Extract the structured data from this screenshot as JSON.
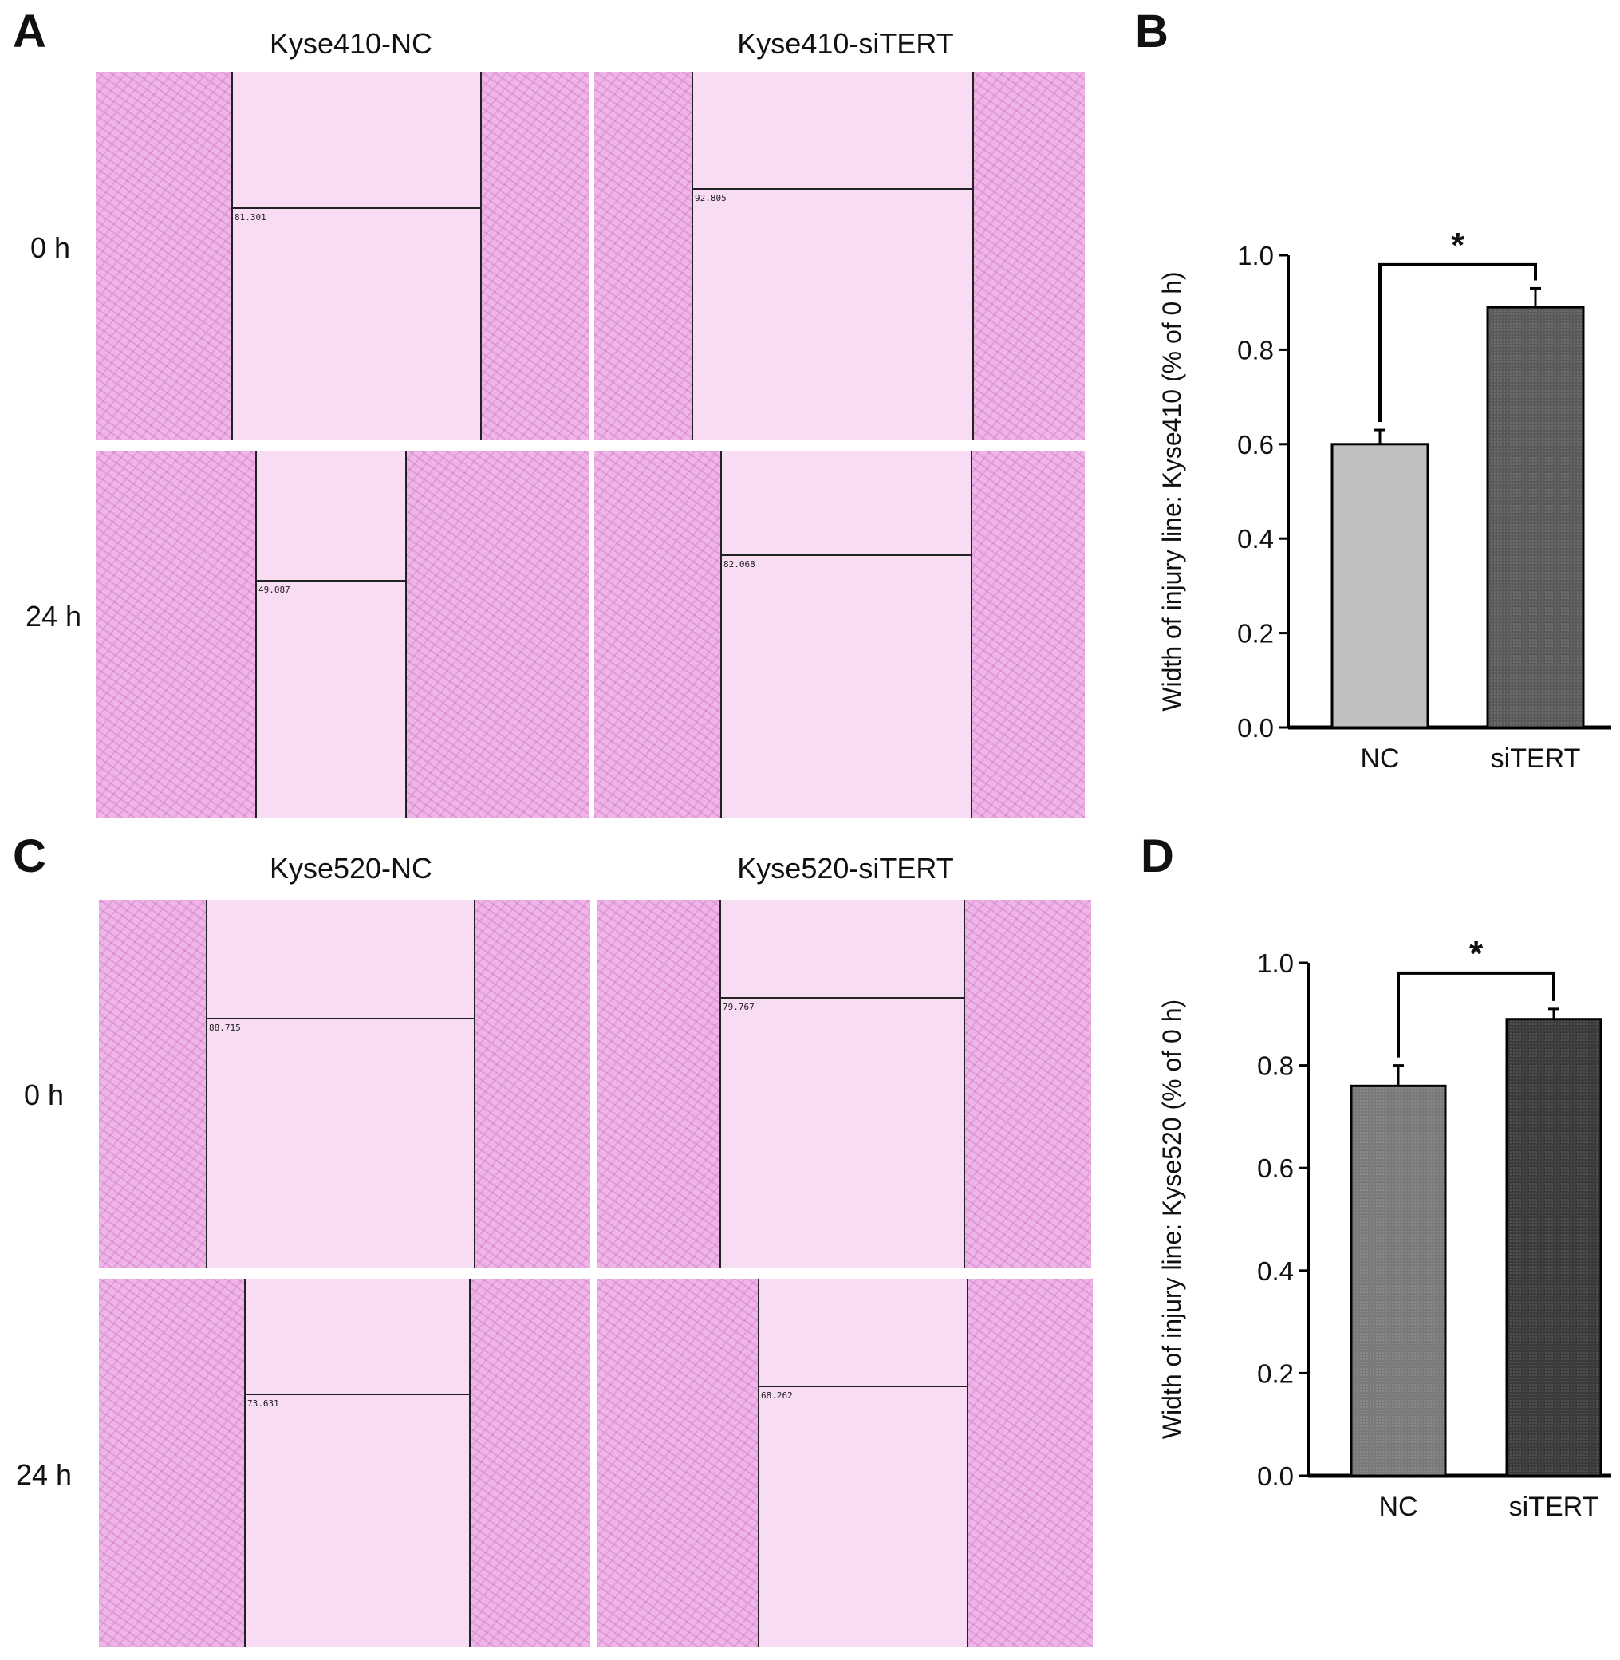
{
  "panels": {
    "A": {
      "letter": "A",
      "col_titles": [
        "Kyse410-NC",
        "Kyse410-siTERT"
      ],
      "row_labels": [
        "0 h",
        "24 h"
      ],
      "measurements": [
        "81.301",
        "92.805",
        "49.087",
        "82.068"
      ]
    },
    "B": {
      "letter": "B"
    },
    "C": {
      "letter": "C",
      "col_titles": [
        "Kyse520-NC",
        "Kyse520-siTERT"
      ],
      "row_labels": [
        "0 h",
        "24 h"
      ],
      "measurements": [
        "88.715",
        "79.767",
        "73.631",
        "68.262"
      ]
    },
    "D": {
      "letter": "D"
    }
  },
  "colors": {
    "nc_kyse410": "#c0c0c0",
    "siTERT_kyse410": "#5a5a5a",
    "nc_kyse520": "#7a7a7a",
    "siTERT_kyse520": "#3a3a3a",
    "micrograph_bg": "#f3c6ee"
  },
  "chart_data": [
    {
      "type": "bar",
      "panel": "B",
      "categories": [
        "NC",
        "siTERT"
      ],
      "values": [
        0.6,
        0.89
      ],
      "errors": [
        0.03,
        0.04
      ],
      "ylabel": "Width of injury line: Kyse410 (% of 0 h)",
      "ylim": [
        0,
        1.0
      ],
      "yticks": [
        "0.0",
        "0.2",
        "0.4",
        "0.6",
        "0.8",
        "1.0"
      ],
      "significance": "*"
    },
    {
      "type": "bar",
      "panel": "D",
      "categories": [
        "NC",
        "siTERT"
      ],
      "values": [
        0.76,
        0.89
      ],
      "errors": [
        0.04,
        0.02
      ],
      "ylabel": "Width of injury line: Kyse520 (% of 0 h)",
      "ylim": [
        0,
        1.0
      ],
      "yticks": [
        "0.0",
        "0.2",
        "0.4",
        "0.6",
        "0.8",
        "1.0"
      ],
      "significance": "*"
    }
  ]
}
